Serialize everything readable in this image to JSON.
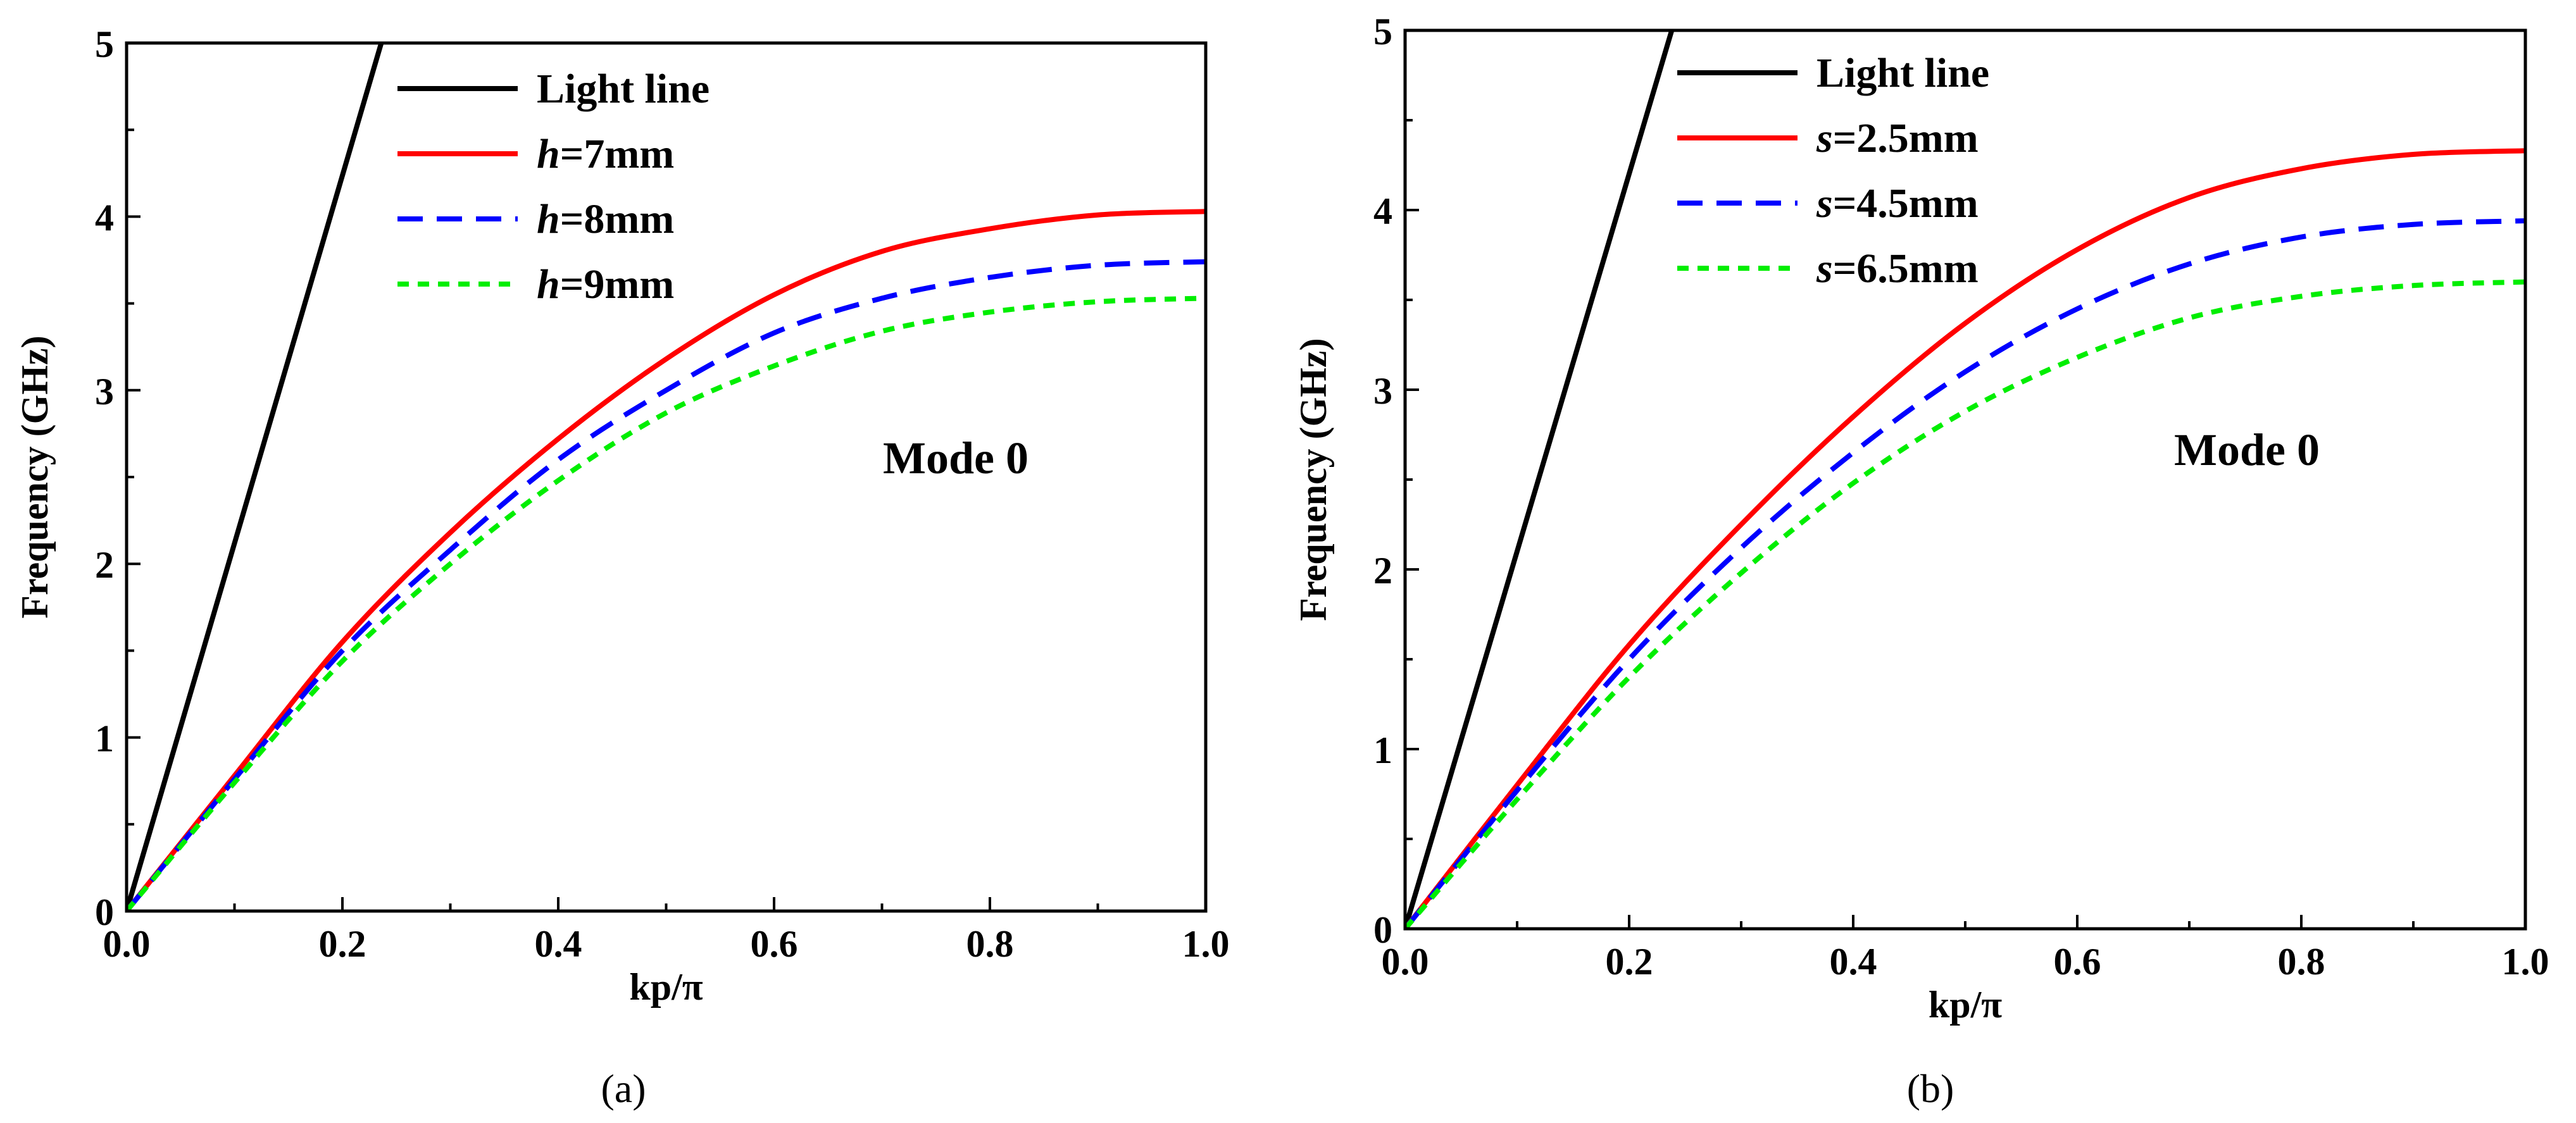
{
  "colors": {
    "light_line": "#000000",
    "series1": "#ff0000",
    "series2": "#0000ff",
    "series3": "#00ee00",
    "axis": "#000000",
    "background": "#ffffff"
  },
  "chart_data": [
    {
      "panel": "a",
      "caption": "(a)",
      "type": "line",
      "title": "",
      "xlabel": "kp/π",
      "ylabel": "Frequency (GHz)",
      "xlim": [
        0,
        1
      ],
      "ylim": [
        0,
        5
      ],
      "xticks": [
        "0.0",
        "0.2",
        "0.4",
        "0.6",
        "0.8",
        "1.0"
      ],
      "yticks": [
        "0",
        "1",
        "2",
        "3",
        "4",
        "5"
      ],
      "annotation": "Mode 0",
      "legend_position": "top-left",
      "series": [
        {
          "name": "Light line",
          "var": "",
          "eq": "Light line",
          "style": "solid",
          "color": "#000000",
          "x": [
            0,
            0.236
          ],
          "y": [
            0,
            5
          ]
        },
        {
          "name": "h=7mm",
          "var": "h",
          "eq": "=7mm",
          "style": "solid",
          "color": "#ff0000",
          "x": [
            0,
            0.1,
            0.2,
            0.3,
            0.4,
            0.5,
            0.6,
            0.7,
            0.8,
            0.9,
            1.0
          ],
          "y": [
            0,
            0.78,
            1.55,
            2.18,
            2.72,
            3.18,
            3.55,
            3.8,
            3.93,
            4.01,
            4.03
          ]
        },
        {
          "name": "h=8mm",
          "var": "h",
          "eq": "=8mm",
          "style": "dashed",
          "color": "#0000ff",
          "x": [
            0,
            0.1,
            0.2,
            0.3,
            0.4,
            0.5,
            0.6,
            0.7,
            0.8,
            0.9,
            1.0
          ],
          "y": [
            0,
            0.76,
            1.5,
            2.08,
            2.6,
            3.0,
            3.33,
            3.53,
            3.65,
            3.72,
            3.74
          ]
        },
        {
          "name": "h=9mm",
          "var": "h",
          "eq": "=9mm",
          "style": "dotted",
          "color": "#00ee00",
          "x": [
            0,
            0.1,
            0.2,
            0.3,
            0.4,
            0.5,
            0.6,
            0.7,
            0.8,
            0.9,
            1.0
          ],
          "y": [
            0,
            0.74,
            1.44,
            2.0,
            2.48,
            2.87,
            3.14,
            3.34,
            3.45,
            3.51,
            3.53
          ]
        }
      ]
    },
    {
      "panel": "b",
      "caption": "(b)",
      "type": "line",
      "title": "",
      "xlabel": "kp/π",
      "ylabel": "Frequency (GHz)",
      "xlim": [
        0,
        1
      ],
      "ylim": [
        0,
        5
      ],
      "xticks": [
        "0.0",
        "0.2",
        "0.4",
        "0.6",
        "0.8",
        "1.0"
      ],
      "yticks": [
        "0",
        "1",
        "2",
        "3",
        "4",
        "5"
      ],
      "annotation": "Mode 0",
      "legend_position": "top-left",
      "series": [
        {
          "name": "Light line",
          "var": "",
          "eq": "Light line",
          "style": "solid",
          "color": "#000000",
          "x": [
            0,
            0.238
          ],
          "y": [
            0,
            5
          ]
        },
        {
          "name": "s=2.5mm",
          "var": "s",
          "eq": "=2.5mm",
          "style": "solid",
          "color": "#ff0000",
          "x": [
            0,
            0.1,
            0.2,
            0.3,
            0.4,
            0.5,
            0.6,
            0.7,
            0.8,
            0.9,
            1.0
          ],
          "y": [
            0,
            0.8,
            1.58,
            2.25,
            2.85,
            3.37,
            3.78,
            4.07,
            4.23,
            4.31,
            4.33
          ]
        },
        {
          "name": "s=4.5mm",
          "var": "s",
          "eq": "=4.5mm",
          "style": "dashed",
          "color": "#0000ff",
          "x": [
            0,
            0.1,
            0.2,
            0.3,
            0.4,
            0.5,
            0.6,
            0.7,
            0.8,
            0.9,
            1.0
          ],
          "y": [
            0,
            0.77,
            1.5,
            2.12,
            2.65,
            3.1,
            3.45,
            3.7,
            3.85,
            3.92,
            3.94
          ]
        },
        {
          "name": "s=6.5mm",
          "var": "s",
          "eq": "=6.5mm",
          "style": "dotted",
          "color": "#00ee00",
          "x": [
            0,
            0.1,
            0.2,
            0.3,
            0.4,
            0.5,
            0.6,
            0.7,
            0.8,
            0.9,
            1.0
          ],
          "y": [
            0,
            0.72,
            1.4,
            1.98,
            2.48,
            2.88,
            3.18,
            3.4,
            3.52,
            3.58,
            3.6
          ]
        }
      ]
    }
  ]
}
